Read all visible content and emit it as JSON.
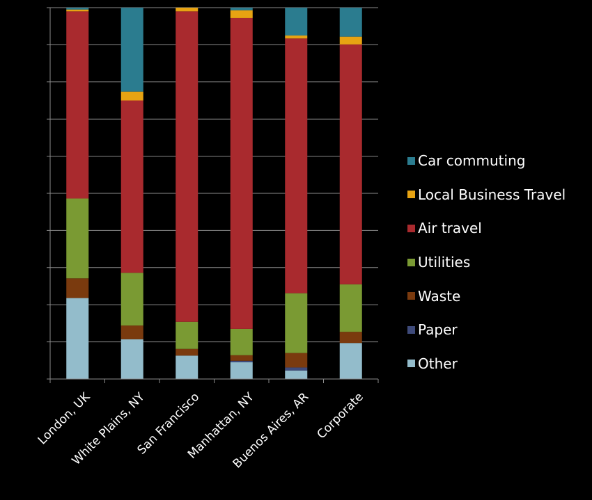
{
  "chart_data": {
    "type": "bar",
    "stacked": true,
    "normalized": true,
    "categories": [
      "London, UK",
      "White Plains, NY",
      "San Francisco",
      "Manhattan, NY",
      "Buenos Aires, AR",
      "Corporate"
    ],
    "ylim": [
      0,
      100
    ],
    "grid": true,
    "legend_position": "right",
    "series": [
      {
        "name": "Other",
        "color": "#93BCCB",
        "values": [
          21.8,
          10.7,
          6.3,
          4.5,
          2.3,
          9.7
        ]
      },
      {
        "name": "Paper",
        "color": "#3E4A7A",
        "values": [
          0,
          0,
          0,
          0.4,
          0.8,
          0
        ]
      },
      {
        "name": "Waste",
        "color": "#7A3A0E",
        "values": [
          5.3,
          3.7,
          1.8,
          1.5,
          3.9,
          3.0
        ]
      },
      {
        "name": "Utilities",
        "color": "#7A9A33",
        "values": [
          21.5,
          14.2,
          7.3,
          7.1,
          16.1,
          12.8
        ]
      },
      {
        "name": "Air travel",
        "color": "#A92A2E",
        "values": [
          50.4,
          46.4,
          83.6,
          83.7,
          68.6,
          64.6
        ]
      },
      {
        "name": "Local Business Travel",
        "color": "#E7A312",
        "values": [
          0.5,
          2.4,
          1.0,
          2.1,
          0.8,
          2.1
        ]
      },
      {
        "name": "Car commuting",
        "color": "#2B7C8F",
        "values": [
          0.5,
          22.6,
          0,
          0.7,
          7.5,
          7.8
        ]
      }
    ]
  }
}
